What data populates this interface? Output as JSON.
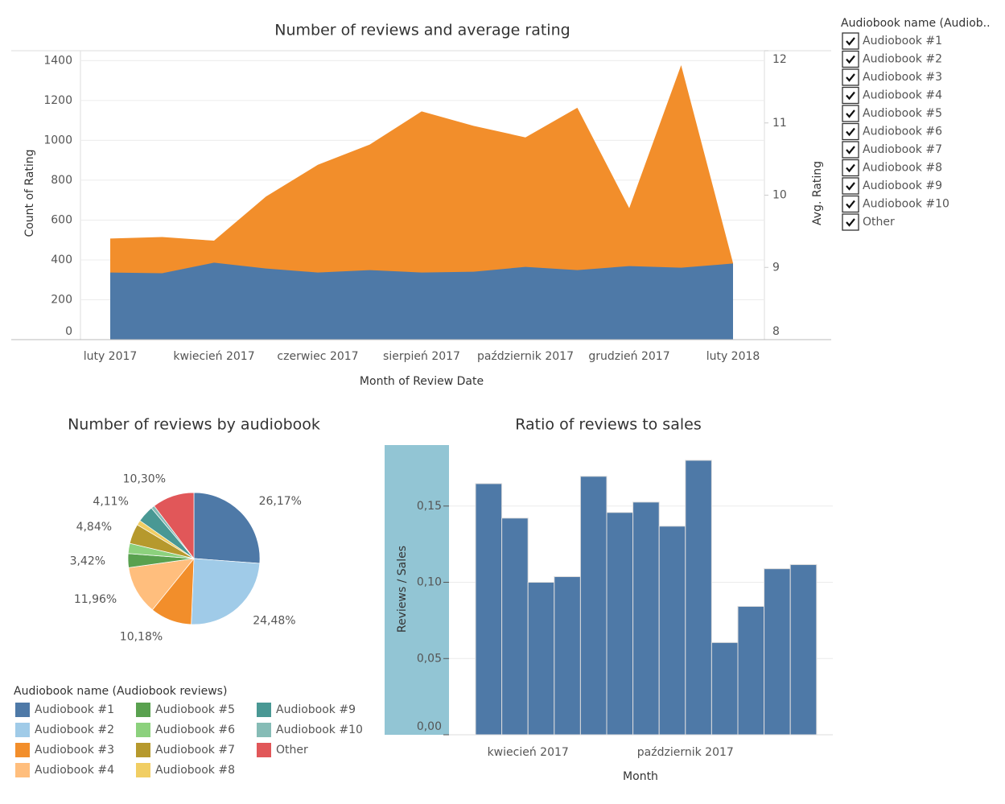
{
  "chart_data": [
    {
      "type": "area",
      "title": "Number of reviews and average rating",
      "x_label": "Month of Review Date",
      "y_label": "Count of Rating",
      "y2_label": "Avg. Rating",
      "categories": [
        "luty 2017",
        null,
        "kwiecień 2017",
        null,
        "czerwiec 2017",
        null,
        "sierpień 2017",
        null,
        "październik 2017",
        null,
        "grudzień 2017",
        null,
        "luty 2018"
      ],
      "series": [
        {
          "color": "#f28e2b",
          "axis": "y2",
          "values": [
            9.4,
            9.42,
            9.37,
            9.98,
            10.42,
            10.7,
            11.16,
            10.96,
            10.8,
            11.21,
            9.82,
            11.8,
            9.06
          ]
        },
        {
          "color": "#4e79a7",
          "values": [
            337,
            333,
            386,
            357,
            337,
            349,
            337,
            341,
            365,
            349,
            369,
            361,
            382
          ]
        }
      ],
      "ylim": [
        0,
        1450
      ],
      "yticks": [
        0,
        200,
        400,
        600,
        800,
        1000,
        1200,
        1400
      ],
      "y2lim": [
        8,
        12
      ],
      "y2ticks": [
        8,
        9,
        10,
        11,
        12
      ],
      "grid": true
    },
    {
      "type": "pie",
      "title": "Number of reviews by audiobook",
      "legend_title": "Audiobook name (Audiobook reviews)",
      "categories": [
        "Audiobook #1",
        "Audiobook #2",
        "Audiobook #3",
        "Audiobook #4",
        "Audiobook #5",
        "Audiobook #6",
        "Audiobook #7",
        "Audiobook #8",
        "Audiobook #9",
        "Audiobook #10",
        "Other"
      ],
      "colors": [
        "#4e79a7",
        "#a0cbe8",
        "#f28e2b",
        "#ffbe7d",
        "#59a14f",
        "#8cd17d",
        "#b6992d",
        "#f1ce63",
        "#499894",
        "#86bcb6",
        "#e15759"
      ],
      "values": [
        26.17,
        24.48,
        10.18,
        11.96,
        3.42,
        2.5,
        4.84,
        1.2,
        4.11,
        0.84,
        10.3
      ],
      "value_labels": [
        "26,17%",
        "24,48%",
        "10,18%",
        "11,96%",
        "3,42%",
        null,
        "4,84%",
        null,
        "4,11%",
        null,
        "10,30%"
      ]
    },
    {
      "type": "bar",
      "title": "Ratio of reviews to sales",
      "x_label": "Month",
      "y_label": "Reviews / Sales",
      "categories": [
        null,
        null,
        "kwiecień 2017",
        null,
        null,
        null,
        null,
        null,
        "październik 2017",
        null,
        null,
        null,
        null
      ],
      "values": [
        0.1647,
        0.1421,
        0.1,
        0.1037,
        0.1695,
        0.1458,
        0.1526,
        0.1368,
        0.18,
        0.0605,
        0.0842,
        0.1089,
        0.1116
      ],
      "color": "#4e79a7",
      "ylim": [
        0,
        0.19
      ],
      "yticks": [
        {
          "value": 0,
          "label": "0,00"
        },
        {
          "value": 0.05,
          "label": "0,05"
        },
        {
          "value": 0.1,
          "label": "0,10"
        },
        {
          "value": 0.15,
          "label": "0,15"
        }
      ],
      "grid": true
    }
  ],
  "filter": {
    "title": "Audiobook name (Audiob..",
    "items": [
      "Audiobook #1",
      "Audiobook #2",
      "Audiobook #3",
      "Audiobook #4",
      "Audiobook #5",
      "Audiobook #6",
      "Audiobook #7",
      "Audiobook #8",
      "Audiobook #9",
      "Audiobook #10",
      "Other"
    ]
  }
}
